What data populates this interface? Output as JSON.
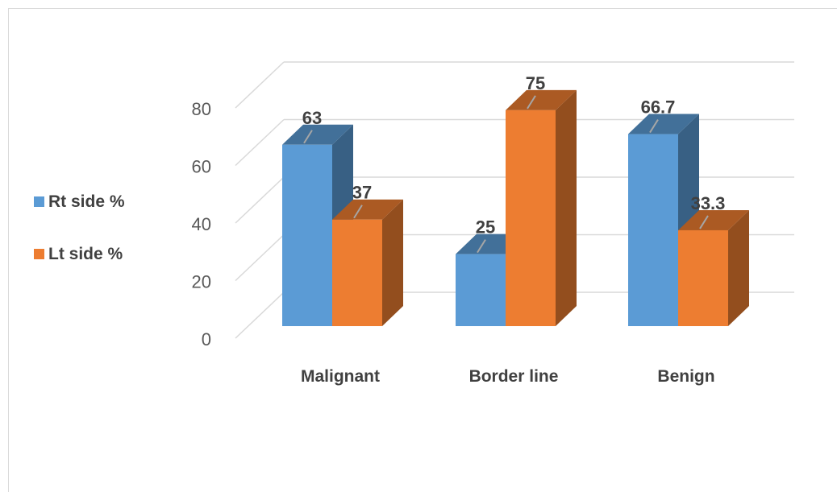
{
  "chart_data": {
    "type": "bar",
    "subtype": "3d-clustered-column",
    "categories": [
      "Malignant",
      "Border line",
      "Benign"
    ],
    "series": [
      {
        "name": "Rt side %",
        "values": [
          63,
          25,
          66.7
        ],
        "color": "#5b9bd5"
      },
      {
        "name": "Lt side %",
        "values": [
          37,
          75,
          33.3
        ],
        "color": "#ed7d31"
      }
    ],
    "data_labels": [
      [
        "63",
        "25",
        "66.7"
      ],
      [
        "37",
        "75",
        "33.3"
      ]
    ],
    "yticks": [
      "0",
      "20",
      "40",
      "60",
      "80"
    ],
    "ytick_values": [
      0,
      20,
      40,
      60,
      80
    ],
    "ylim": [
      0,
      80
    ],
    "grid": true,
    "legend": "left",
    "title": "",
    "xlabel": "",
    "ylabel": ""
  }
}
